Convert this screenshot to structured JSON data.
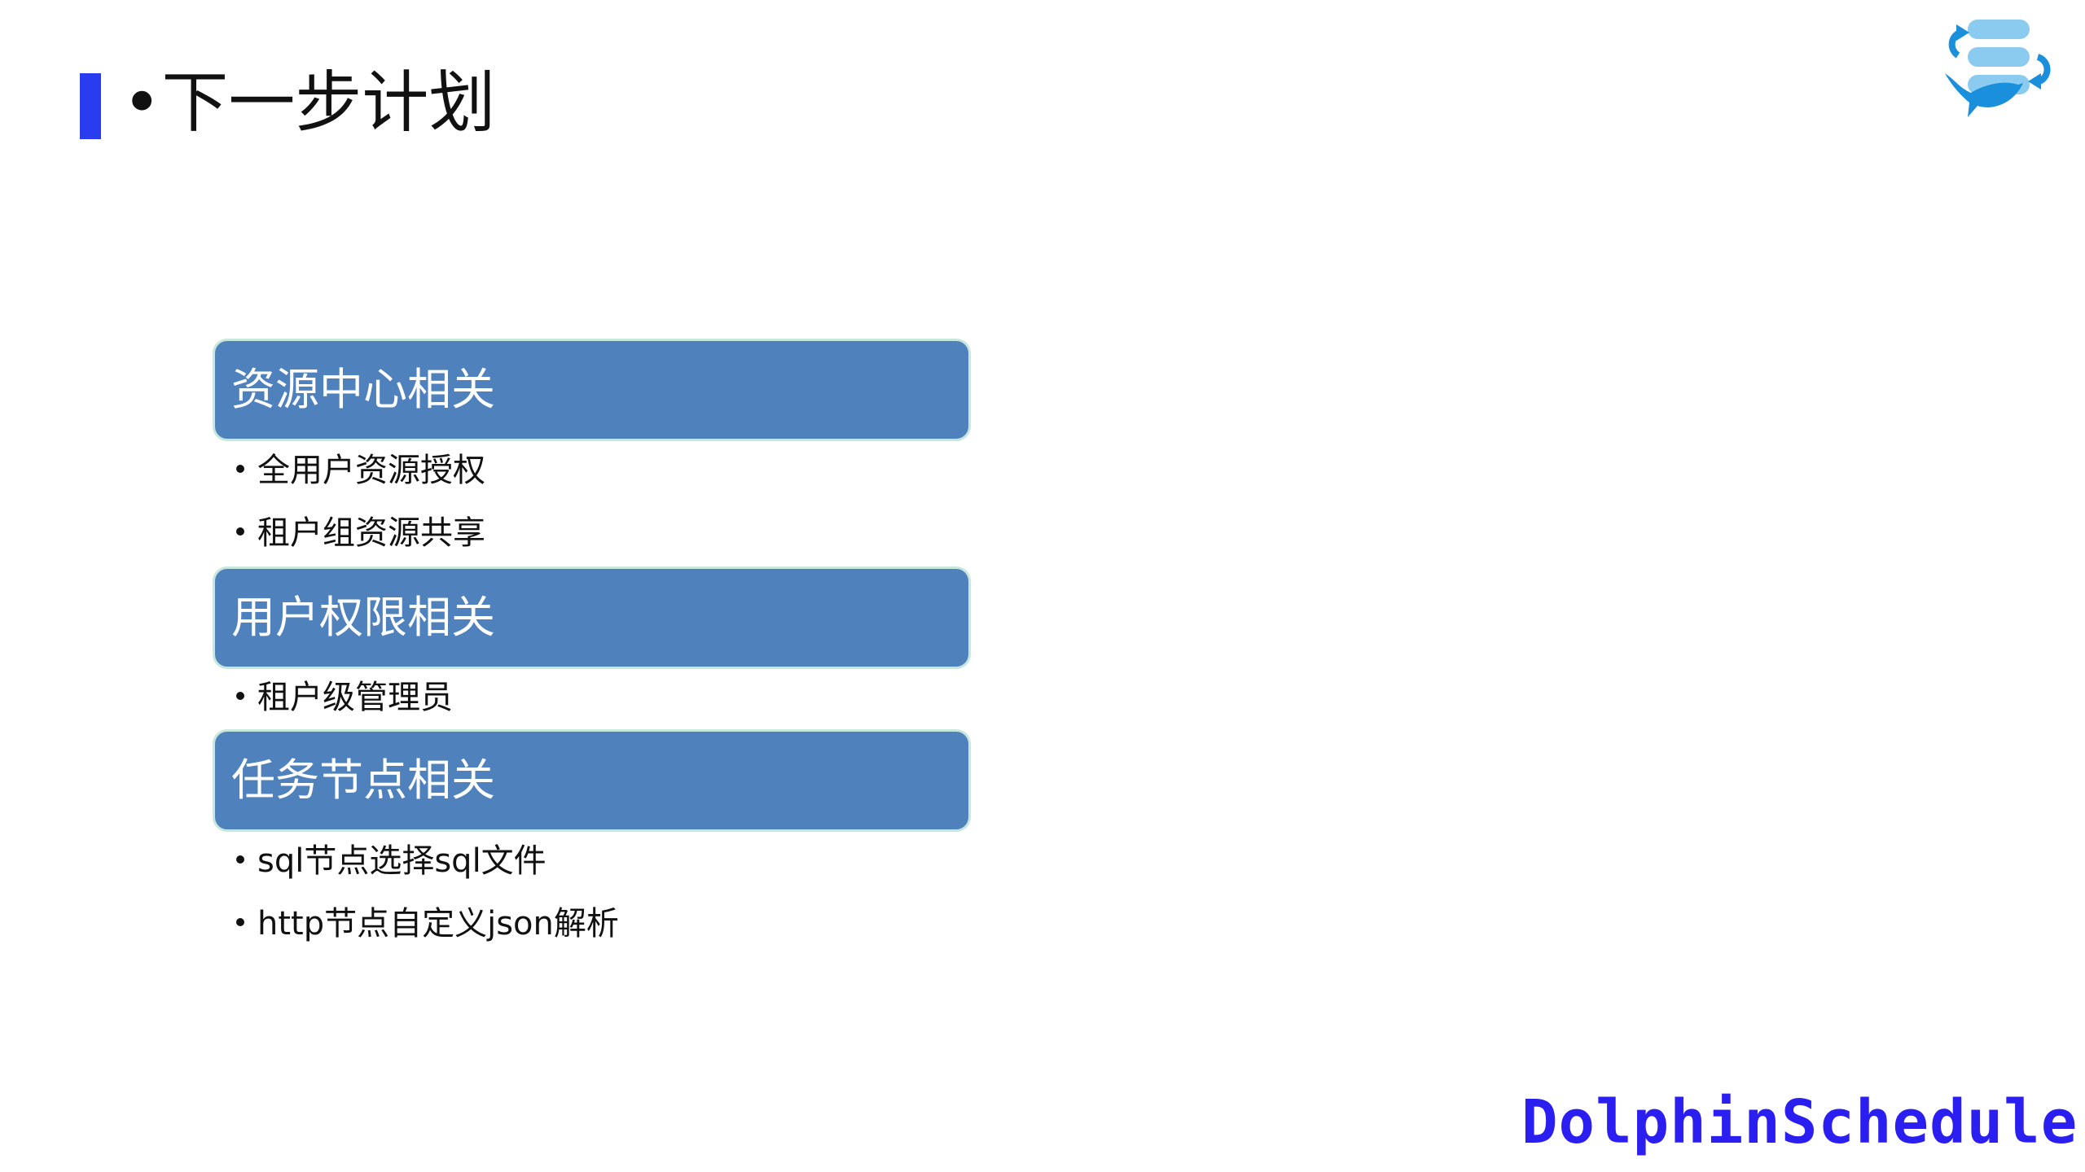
{
  "title": "•下一步计划",
  "sections": [
    {
      "heading": "资源中心相关",
      "items": [
        "全用户资源授权",
        "租户组资源共享"
      ]
    },
    {
      "heading": "用户权限相关",
      "items": [
        "租户级管理员"
      ]
    },
    {
      "heading": "任务节点相关",
      "items": [
        "sql节点选择sql文件",
        "http节点自定义json解析"
      ]
    }
  ],
  "brand": "DolphinScheduler",
  "colors": {
    "accent_bar": "#2a3cf0",
    "section_fill": "#4f81bd",
    "brand_text": "#2a1ef0",
    "logo_blue": "#1a8fdc",
    "logo_light": "#8ccbf0"
  },
  "logo_icon": "dolphin-database-icon"
}
